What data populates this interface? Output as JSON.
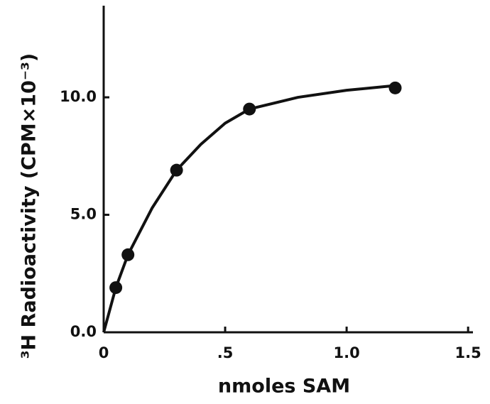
{
  "chart_data": {
    "type": "scatter",
    "x_label": "nmoles SAM",
    "y_label": "³H Radioactivity (CPM×10⁻³)",
    "xlim": [
      0,
      1.52
    ],
    "ylim": [
      0,
      13.9
    ],
    "xticks": [
      0,
      {
        "value": 0.5,
        "label": ".5"
      },
      {
        "value": 1,
        "label": "1.0"
      },
      1.5
    ],
    "yticks": [
      {
        "value": 0,
        "label": "0.0"
      },
      {
        "value": 5,
        "label": "5.0"
      },
      {
        "value": 10,
        "label": "10.0"
      }
    ],
    "color": "#111111",
    "series": [
      {
        "x": [
          0.05,
          0.1,
          0.3,
          0.6,
          1.2
        ],
        "values": [
          1.9,
          3.3,
          6.9,
          9.5,
          10.4
        ],
        "color": "#111111"
      },
      {
        "type": "line",
        "x": [
          0,
          0.05,
          0.1,
          0.2,
          0.3,
          0.4,
          0.5,
          0.6,
          0.8,
          1.0,
          1.2
        ],
        "values": [
          0,
          1.9,
          3.3,
          5.3,
          6.9,
          8.0,
          8.9,
          9.5,
          10.0,
          10.3,
          10.5
        ],
        "color": "#111111"
      }
    ]
  }
}
